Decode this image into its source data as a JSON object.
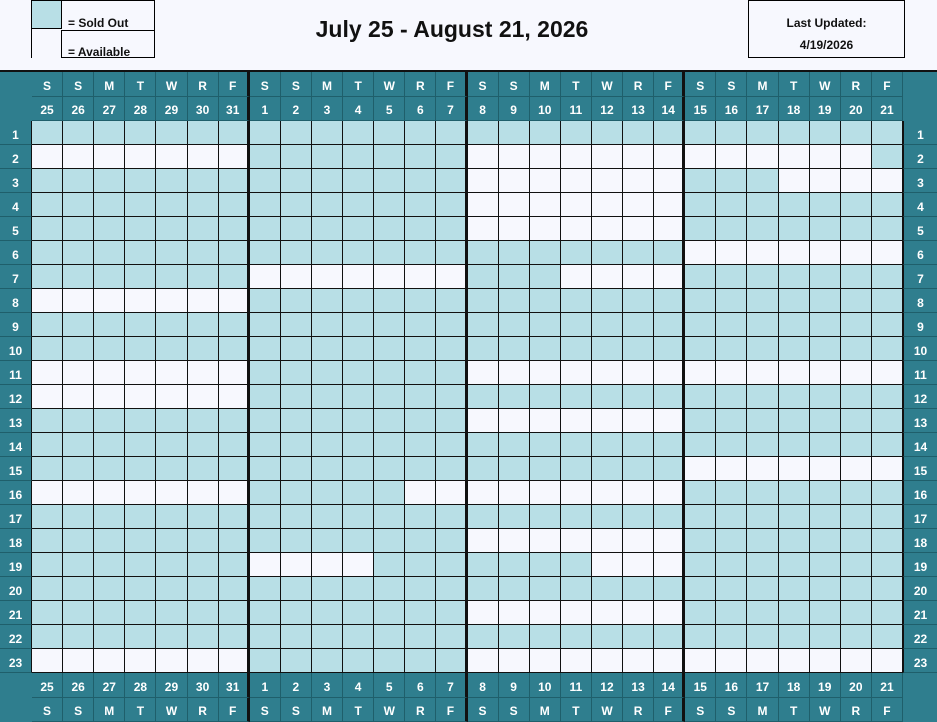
{
  "legend": {
    "sold_label": "= Sold Out",
    "available_label": "= Available",
    "sold_color": "#b8dfe6",
    "available_color": "#f7f8fe"
  },
  "title": "July 25 - August 21, 2026",
  "last_updated": {
    "label": "Last Updated:",
    "date": "4/19/2026"
  },
  "colors": {
    "header": "#2f7e8e",
    "sold": "#b8dfe6",
    "available": "#f7f8fe"
  },
  "days": [
    {
      "dow": "S",
      "date": "25"
    },
    {
      "dow": "S",
      "date": "26"
    },
    {
      "dow": "M",
      "date": "27"
    },
    {
      "dow": "T",
      "date": "28"
    },
    {
      "dow": "W",
      "date": "29"
    },
    {
      "dow": "R",
      "date": "30"
    },
    {
      "dow": "F",
      "date": "31"
    },
    {
      "dow": "S",
      "date": "1"
    },
    {
      "dow": "S",
      "date": "2"
    },
    {
      "dow": "M",
      "date": "3"
    },
    {
      "dow": "T",
      "date": "4"
    },
    {
      "dow": "W",
      "date": "5"
    },
    {
      "dow": "R",
      "date": "6"
    },
    {
      "dow": "F",
      "date": "7"
    },
    {
      "dow": "S",
      "date": "8"
    },
    {
      "dow": "S",
      "date": "9"
    },
    {
      "dow": "M",
      "date": "10"
    },
    {
      "dow": "T",
      "date": "11"
    },
    {
      "dow": "W",
      "date": "12"
    },
    {
      "dow": "R",
      "date": "13"
    },
    {
      "dow": "F",
      "date": "14"
    },
    {
      "dow": "S",
      "date": "15"
    },
    {
      "dow": "S",
      "date": "16"
    },
    {
      "dow": "M",
      "date": "17"
    },
    {
      "dow": "T",
      "date": "18"
    },
    {
      "dow": "W",
      "date": "19"
    },
    {
      "dow": "R",
      "date": "20"
    },
    {
      "dow": "F",
      "date": "21"
    }
  ],
  "status_legend": {
    "S": "Sold Out",
    "A": "Available"
  },
  "rows": [
    {
      "label": "1",
      "status": "SSSSSSSSSSSSSSSSSSSSSSSSSSSS"
    },
    {
      "label": "2",
      "status": "AAAAAAASSSSSSSAAAAAAAAAAAAAS"
    },
    {
      "label": "3",
      "status": "SSSSSSSSSSSSSSAAAAAAASSSAAAA"
    },
    {
      "label": "4",
      "status": "SSSSSSSSSSSSSSAAAAAAASSSSSSS"
    },
    {
      "label": "5",
      "status": "SSSSSSSSSSSSSSAAAAAAASSSSSSS"
    },
    {
      "label": "6",
      "status": "SSSSSSSSSSSSSSSSSSSSSAAAAAAA"
    },
    {
      "label": "7",
      "status": "SSSSSSSAAAAAAASSSAAAASSSSSSS"
    },
    {
      "label": "8",
      "status": "AAAAAAASSSSSSSSSSSSSSSSSSSSS"
    },
    {
      "label": "9",
      "status": "SSSSSSSSSSSSSSSSSSSSSSSSSSSS"
    },
    {
      "label": "10",
      "status": "SSSSSSSSSSSSSSSSSSSSSSSSSSSS"
    },
    {
      "label": "11",
      "status": "AAAAAAASSSSSSSAAAAAAAAAAAAAA"
    },
    {
      "label": "12",
      "status": "AAAAAAASSSSSSSSSSSSSSSSSSSSS"
    },
    {
      "label": "13",
      "status": "SSSSSSSSSSSSSSAAAAAAASSSSSSS"
    },
    {
      "label": "14",
      "status": "SSSSSSSSSSSSSSSSSSSSSSSSSSSS"
    },
    {
      "label": "15",
      "status": "SSSSSSSSSSSSSSSSSSSSSAAAAAAA"
    },
    {
      "label": "16",
      "status": "AAAAAAASSSSSAAAAAAAAASSSSSSS"
    },
    {
      "label": "17",
      "status": "SSSSSSSSSSSSSSSSSSSSSSSSSSSS"
    },
    {
      "label": "18",
      "status": "SSSSSSSSSSSSSSAAAAAAASSSSSSS"
    },
    {
      "label": "19",
      "status": "SSSSSSSAAAASSSSSSSAAASSSSSSS"
    },
    {
      "label": "20",
      "status": "SSSSSSSSSSSSSSSSSSSSSSSSSSSS"
    },
    {
      "label": "21",
      "status": "SSSSSSSSSSSSSSAAAAAAASSSSSSS"
    },
    {
      "label": "22",
      "status": "SSSSSSSSSSSSSSSSSSSSSSSSSSSS"
    },
    {
      "label": "23",
      "status": "AAAAAAASSSSSSSAAAAAAAAAAAAAA"
    }
  ]
}
